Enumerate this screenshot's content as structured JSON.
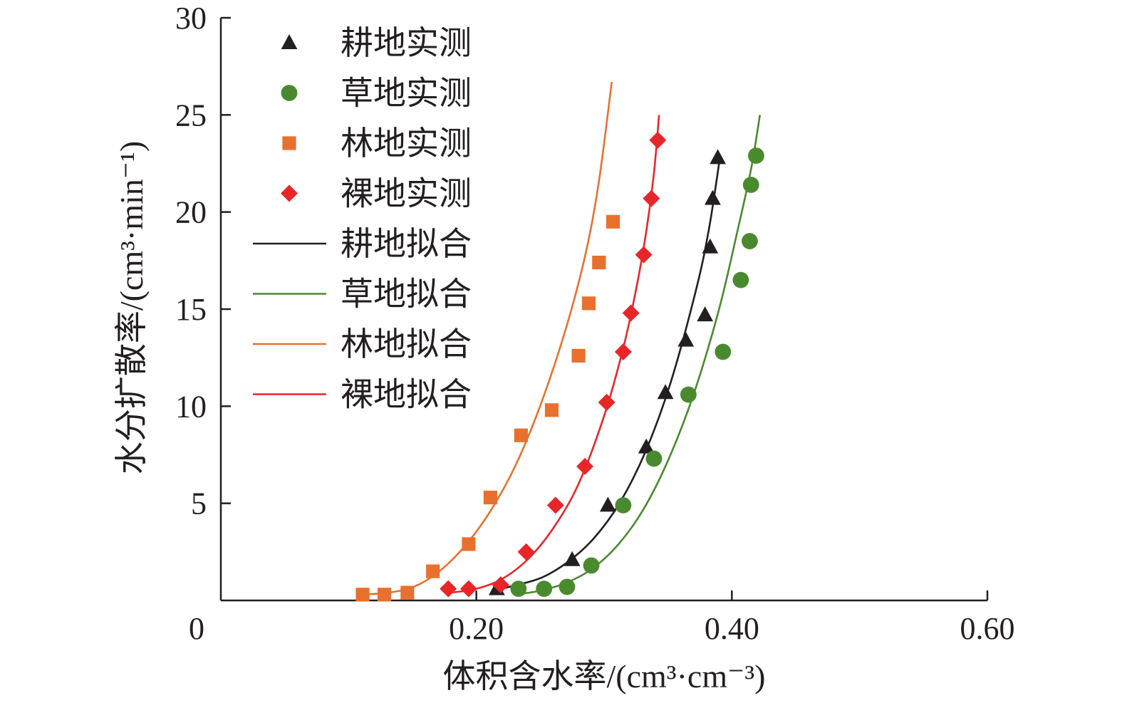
{
  "chart_data": {
    "type": "scatter",
    "xlabel": "体积含水率/(cm³·cm⁻³)",
    "ylabel": "水分扩散率/(cm³·min⁻¹)",
    "xlim": [
      0,
      0.6
    ],
    "ylim": [
      0,
      30
    ],
    "x_ticks": [
      "0",
      "0.20",
      "0.40",
      "0.60"
    ],
    "x_tick_values": [
      0,
      0.2,
      0.4,
      0.6
    ],
    "y_ticks": [
      "5",
      "10",
      "15",
      "20",
      "25",
      "30"
    ],
    "y_tick_values": [
      5,
      10,
      15,
      20,
      25,
      30
    ],
    "legend_position": "top-left",
    "series": [
      {
        "name": "耕地实测",
        "kind": "points",
        "marker": "triangle",
        "color": "#231f20",
        "x": [
          0.216,
          0.275,
          0.303,
          0.333,
          0.348,
          0.364,
          0.379,
          0.383,
          0.385,
          0.389
        ],
        "y": [
          0.6,
          2.1,
          4.9,
          7.9,
          10.7,
          13.4,
          14.7,
          18.2,
          20.7,
          22.8
        ]
      },
      {
        "name": "草地实测",
        "kind": "points",
        "marker": "circle",
        "color": "#4a8a2f",
        "x": [
          0.233,
          0.253,
          0.271,
          0.29,
          0.315,
          0.339,
          0.366,
          0.393,
          0.407,
          0.414,
          0.415,
          0.419
        ],
        "y": [
          0.6,
          0.6,
          0.7,
          1.8,
          4.9,
          7.3,
          10.6,
          12.8,
          16.5,
          18.5,
          21.4,
          22.9
        ]
      },
      {
        "name": "林地实测",
        "kind": "points",
        "marker": "square",
        "color": "#e8702f",
        "x": [
          0.111,
          0.128,
          0.146,
          0.166,
          0.194,
          0.211,
          0.235,
          0.259,
          0.28,
          0.288,
          0.296,
          0.307
        ],
        "y": [
          0.3,
          0.3,
          0.4,
          1.5,
          2.9,
          5.3,
          8.5,
          9.8,
          12.6,
          15.3,
          17.4,
          19.5
        ]
      },
      {
        "name": "裸地实测",
        "kind": "points",
        "marker": "diamond",
        "color": "#e8262a",
        "x": [
          0.178,
          0.194,
          0.219,
          0.239,
          0.262,
          0.285,
          0.302,
          0.315,
          0.321,
          0.331,
          0.337,
          0.342
        ],
        "y": [
          0.6,
          0.6,
          0.8,
          2.5,
          4.9,
          6.9,
          10.2,
          12.8,
          14.8,
          17.8,
          20.7,
          23.7
        ]
      },
      {
        "name": "耕地拟合",
        "kind": "line",
        "color": "#231f20",
        "x": [
          0.212,
          0.232,
          0.252,
          0.272,
          0.292,
          0.312,
          0.332,
          0.352,
          0.372,
          0.382,
          0.39
        ],
        "y": [
          0.5,
          0.8,
          1.2,
          2.0,
          3.2,
          5.0,
          7.6,
          11.2,
          16.0,
          19.1,
          22.5
        ]
      },
      {
        "name": "草地拟合",
        "kind": "line",
        "color": "#4a8a2f",
        "x": [
          0.23,
          0.25,
          0.27,
          0.29,
          0.31,
          0.33,
          0.35,
          0.37,
          0.39,
          0.405,
          0.415,
          0.422
        ],
        "y": [
          0.3,
          0.5,
          0.9,
          1.6,
          2.8,
          4.6,
          7.2,
          10.6,
          15.0,
          19.2,
          22.2,
          25.0
        ]
      },
      {
        "name": "林地拟合",
        "kind": "line",
        "color": "#e8702f",
        "x": [
          0.111,
          0.131,
          0.151,
          0.171,
          0.191,
          0.211,
          0.231,
          0.251,
          0.271,
          0.286,
          0.296,
          0.306
        ],
        "y": [
          0.3,
          0.4,
          0.7,
          1.5,
          2.8,
          4.6,
          7.0,
          10.2,
          14.2,
          18.0,
          21.6,
          26.7
        ]
      },
      {
        "name": "裸地拟合",
        "kind": "line",
        "color": "#e8262a",
        "x": [
          0.18,
          0.2,
          0.22,
          0.24,
          0.26,
          0.28,
          0.3,
          0.315,
          0.325,
          0.333,
          0.339,
          0.343
        ],
        "y": [
          0.4,
          0.6,
          1.1,
          2.1,
          3.7,
          6.0,
          9.5,
          13.0,
          16.0,
          19.0,
          22.0,
          25.0
        ]
      }
    ]
  }
}
